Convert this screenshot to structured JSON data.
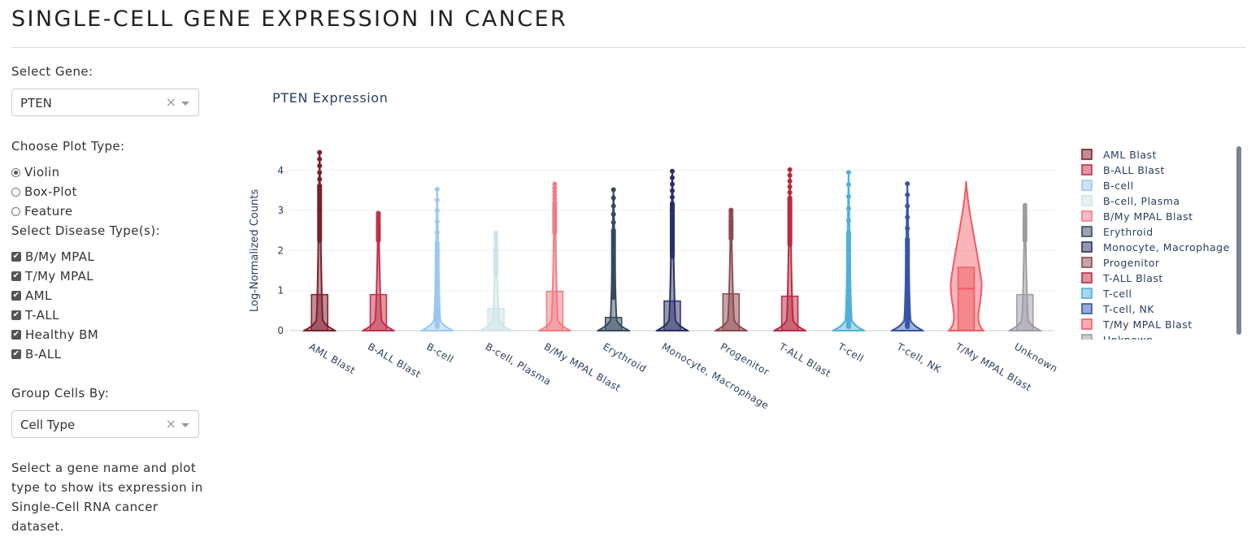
{
  "page": {
    "title": "SINGLE-CELL GENE EXPRESSION IN CANCER"
  },
  "sidebar": {
    "gene_label": "Select Gene:",
    "gene_value": "PTEN",
    "plot_type_label": "Choose Plot Type:",
    "plot_types": [
      {
        "label": "Violin",
        "selected": true
      },
      {
        "label": "Box-Plot",
        "selected": false
      },
      {
        "label": "Feature",
        "selected": false
      }
    ],
    "disease_label": "Select Disease Type(s):",
    "diseases": [
      {
        "label": "B/My MPAL",
        "checked": true
      },
      {
        "label": "T/My MPAL",
        "checked": true
      },
      {
        "label": "AML",
        "checked": true
      },
      {
        "label": "T-ALL",
        "checked": true
      },
      {
        "label": "Healthy BM",
        "checked": true
      },
      {
        "label": "B-ALL",
        "checked": true
      }
    ],
    "group_label": "Group Cells By:",
    "group_value": "Cell Type",
    "help_text": "Select a gene name and plot type to show its expression in Single-Cell RNA cancer dataset.",
    "clear_glyph": "×"
  },
  "chart_data": {
    "type": "violin",
    "title": "PTEN Expression",
    "xlabel": "",
    "ylabel": "Log-Normalized Counts",
    "ylim": [
      0,
      4.5
    ],
    "yticks": [
      0,
      1,
      2,
      3,
      4
    ],
    "grid": true,
    "legend": "right",
    "categories": [
      "AML Blast",
      "B-ALL Blast",
      "B-cell",
      "B-cell, Plasma",
      "B/My MPAL Blast",
      "Erythroid",
      "Monocyte, Macrophage",
      "Progenitor",
      "T-ALL Blast",
      "T-cell",
      "T-cell, NK",
      "T/My MPAL Blast",
      "Unknown"
    ],
    "series": [
      {
        "name": "AML Blast",
        "color": "#7f1d2b",
        "max": 4.45,
        "q3": 0.9,
        "median": 0,
        "q1": 0,
        "upper_fence": 2.25
      },
      {
        "name": "B-ALL Blast",
        "color": "#c0304a",
        "max": 2.93,
        "q3": 0.9,
        "median": 0,
        "q1": 0,
        "upper_fence": 2.25
      },
      {
        "name": "B-cell",
        "color": "#9ac8f2",
        "max": 3.53,
        "q3": 0,
        "median": 0,
        "q1": 0,
        "upper_fence": 0
      },
      {
        "name": "B-cell, Plasma",
        "color": "#cfe4e8",
        "max": 2.44,
        "q3": 0.55,
        "median": 0,
        "q1": 0,
        "upper_fence": 1.4
      },
      {
        "name": "B/My MPAL Blast",
        "color": "#f07c85",
        "max": 3.66,
        "q3": 0.98,
        "median": 0,
        "q1": 0,
        "upper_fence": 2.45
      },
      {
        "name": "Erythroid",
        "color": "#344a5e",
        "max": 3.52,
        "q3": 0.33,
        "median": 0,
        "q1": 0,
        "upper_fence": 0.83
      },
      {
        "name": "Monocyte, Macrophage",
        "color": "#2a2f66",
        "max": 3.98,
        "q3": 0.74,
        "median": 0,
        "q1": 0,
        "upper_fence": 1.85
      },
      {
        "name": "Progenitor",
        "color": "#8c4a4f",
        "max": 3.01,
        "q3": 0.92,
        "median": 0,
        "q1": 0,
        "upper_fence": 2.3
      },
      {
        "name": "T-ALL Blast",
        "color": "#b82a3f",
        "max": 4.02,
        "q3": 0.86,
        "median": 0,
        "q1": 0,
        "upper_fence": 2.15
      },
      {
        "name": "T-cell",
        "color": "#4fb0d8",
        "max": 3.95,
        "q3": 0,
        "median": 0,
        "q1": 0,
        "upper_fence": 0
      },
      {
        "name": "T-cell, NK",
        "color": "#3556a8",
        "max": 3.67,
        "q3": 0,
        "median": 0,
        "q1": 0,
        "upper_fence": 0
      },
      {
        "name": "T/My MPAL Blast",
        "color": "#f25a64",
        "max": 3.73,
        "q3": 1.58,
        "median": 1.05,
        "q1": 0,
        "upper_fence": 3.73
      },
      {
        "name": "Unknown",
        "color": "#a09aa3",
        "max": 3.13,
        "q3": 0.9,
        "median": 0,
        "q1": 0,
        "upper_fence": 2.25
      }
    ]
  }
}
